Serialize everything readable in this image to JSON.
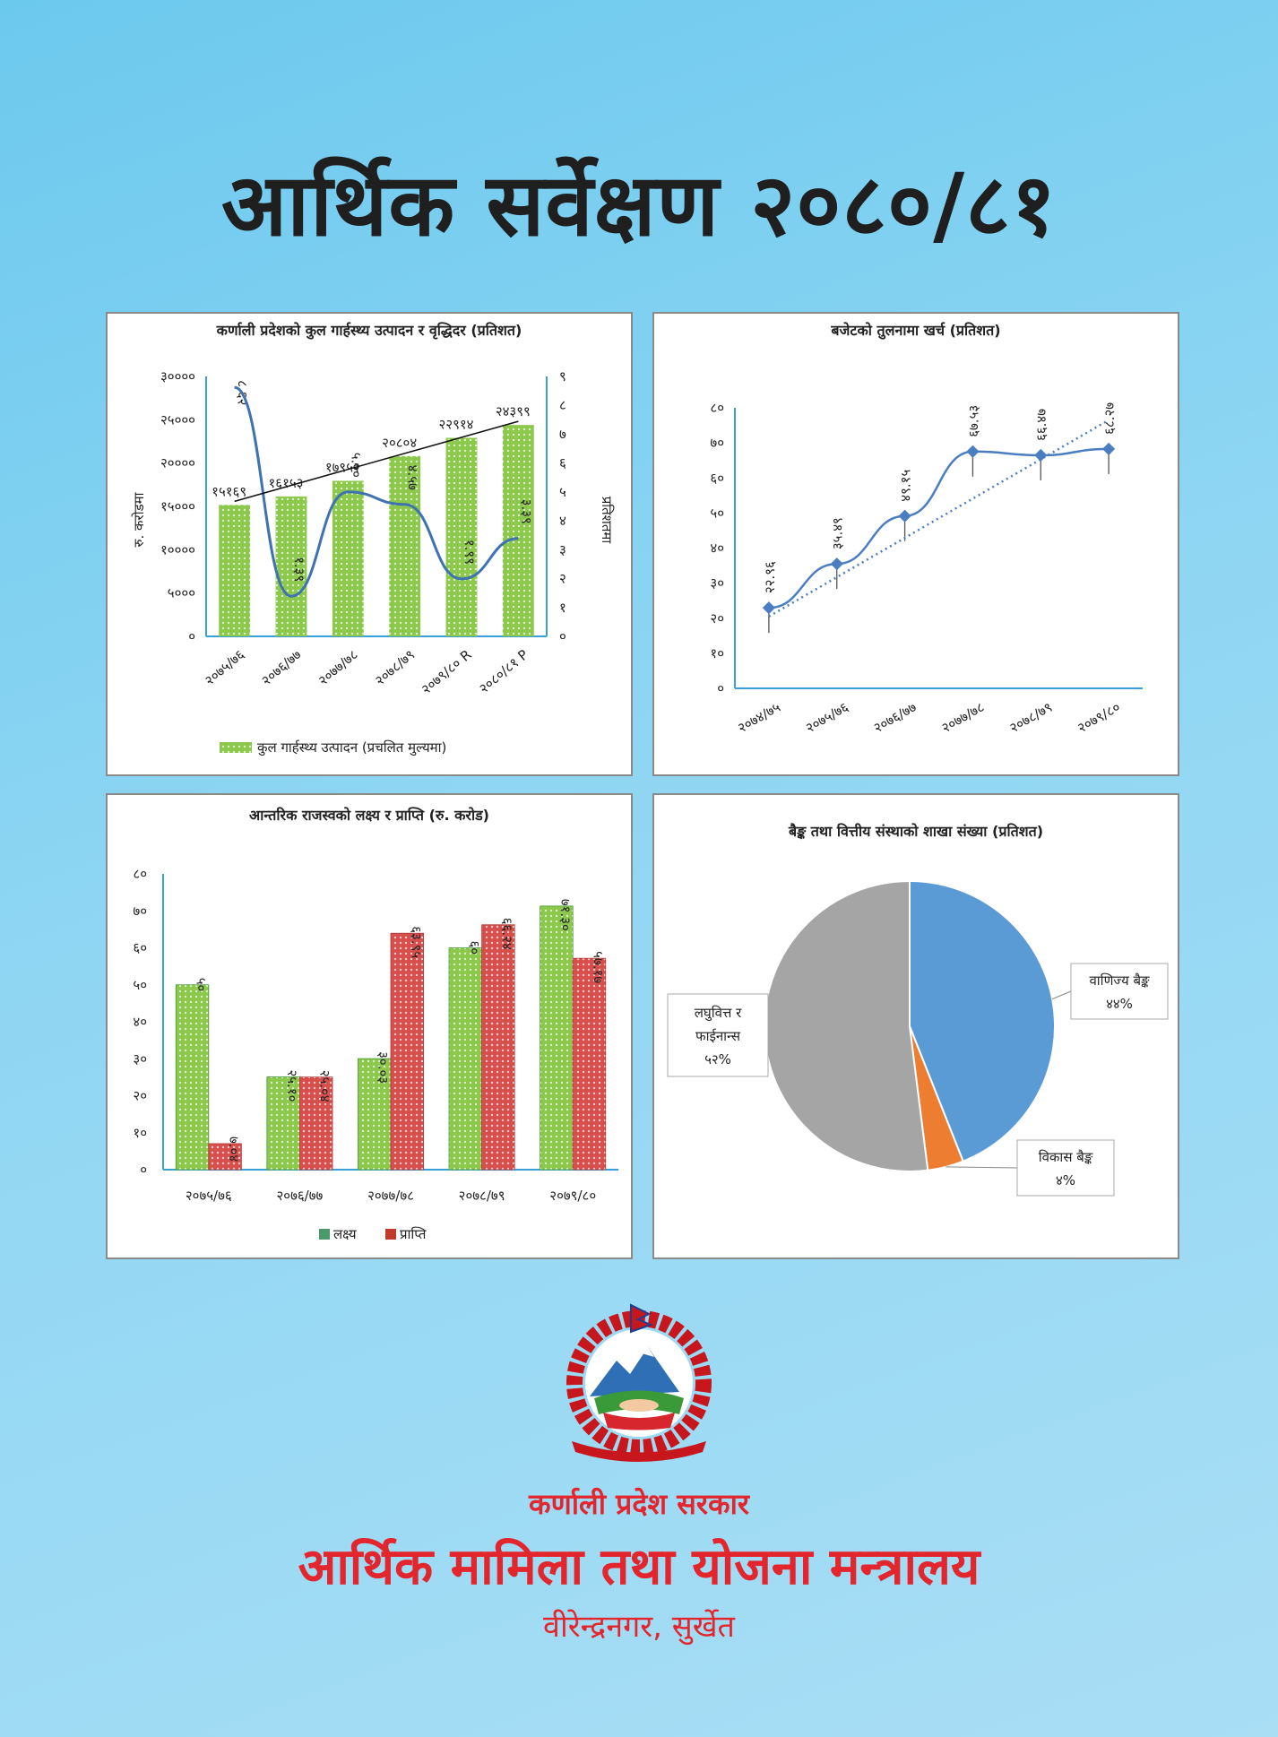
{
  "title": "आर्थिक सर्वेक्षण २०८०/८१",
  "footer": {
    "government": "कर्णाली प्रदेश सरकार",
    "ministry": "आर्थिक मामिला तथा योजना मन्त्रालय",
    "location": "वीरेन्द्रनगर, सुर्खेत"
  },
  "colors": {
    "background": "#7fd0f2",
    "green": "#8cc84b",
    "red": "#d9534f",
    "blue": "#4a7ec0",
    "accent_red": "#e3262d"
  },
  "chart_data": [
    {
      "type": "bar",
      "title": "कर्णाली प्रदेशको कुल गार्हस्थ्य उत्पादन र वृद्धिदर (प्रतिशत)",
      "ylabel": "रु. करोडमा",
      "y2label": "प्रतिशतमा",
      "ylim": [
        0,
        30000
      ],
      "y2lim": [
        0,
        9
      ],
      "yticks": [
        "०",
        "५०००",
        "१००००",
        "१५०००",
        "२००००",
        "२५०००",
        "३००००"
      ],
      "y2ticks": [
        "०",
        "१",
        "२",
        "३",
        "४",
        "५",
        "६",
        "७",
        "८",
        "९"
      ],
      "categories": [
        "२०७५/७६",
        "२०७६/७७",
        "२०७७/७८",
        "२०७८/७९",
        "२०७९/८० R",
        "२०८०/८१ P"
      ],
      "values": [
        15169,
        16153,
        17952,
        20804,
        22914,
        24399
      ],
      "value_labels": [
        "१५१६९",
        "१६१५३",
        "१७९५२",
        "२०८०४",
        "२२९१४",
        "२४३९९"
      ],
      "growth": [
        8.62,
        1.39,
        5.0,
        4.57,
        1.99,
        3.39
      ],
      "growth_labels": [
        "८.६२",
        "१.३९",
        "५.००",
        "४.५७",
        "१.९९",
        "३.३९"
      ],
      "legend": [
        "कुल गार्हस्थ्य उत्पादन (प्रचलित मुल्यमा)"
      ],
      "trendline": true
    },
    {
      "type": "line",
      "title": "बजेटको तुलनामा खर्च (प्रतिशत)",
      "ylim": [
        0,
        80
      ],
      "yticks": [
        "०",
        "१०",
        "२०",
        "३०",
        "४०",
        "५०",
        "६०",
        "७०",
        "८०"
      ],
      "categories": [
        "२०७४/७५",
        "२०७५/७६",
        "२०७६/७७",
        "२०७७/७८",
        "२०७८/७९",
        "२०७९/८०"
      ],
      "values": [
        22.96,
        35.49,
        49.15,
        67.53,
        66.47,
        68.27
      ],
      "value_labels": [
        "२२.९६",
        "३५.४९",
        "४९.१५",
        "६७.५३",
        "६६.४७",
        "६८.२७"
      ],
      "trendline": true
    },
    {
      "type": "bar",
      "title": "आन्तरिक राजस्वको लक्ष्य र प्राप्ति (रु. करोड)",
      "ylim": [
        0,
        80
      ],
      "yticks": [
        "०",
        "१०",
        "२०",
        "३०",
        "४०",
        "५०",
        "६०",
        "७०",
        "८०"
      ],
      "categories": [
        "२०७५/७६",
        "२०७६/७७",
        "२०७७/७८",
        "२०७८/७९",
        "२०७९/८०"
      ],
      "series": [
        {
          "name": "लक्ष्य",
          "values": [
            50,
            25.1,
            30.03,
            60,
            71.3
          ],
          "labels": [
            "५०",
            "२५.१०",
            "३०.०३",
            "६०",
            "७१.३०"
          ]
        },
        {
          "name": "प्राप्ति",
          "values": [
            7.04,
            25.04,
            63.95,
            66.24,
            57.17
          ],
          "labels": [
            "७.०४",
            "२५.०४",
            "६३.९५",
            "६६.२४",
            "५७.१७"
          ]
        }
      ]
    },
    {
      "type": "pie",
      "title": "बैङ्क तथा वित्तीय संस्थाको शाखा संख्या (प्रतिशत)",
      "slices": [
        {
          "name": "वाणिज्य बैङ्क",
          "value": 44,
          "label": "४४%",
          "color": "#5b9bd5"
        },
        {
          "name": "विकास बैङ्क",
          "value": 4,
          "label": "४%",
          "color": "#ed7d31"
        },
        {
          "name": "लघुवित्त र फाईनान्स",
          "value": 52,
          "label": "५२%",
          "color": "#a5a5a5"
        }
      ]
    }
  ]
}
